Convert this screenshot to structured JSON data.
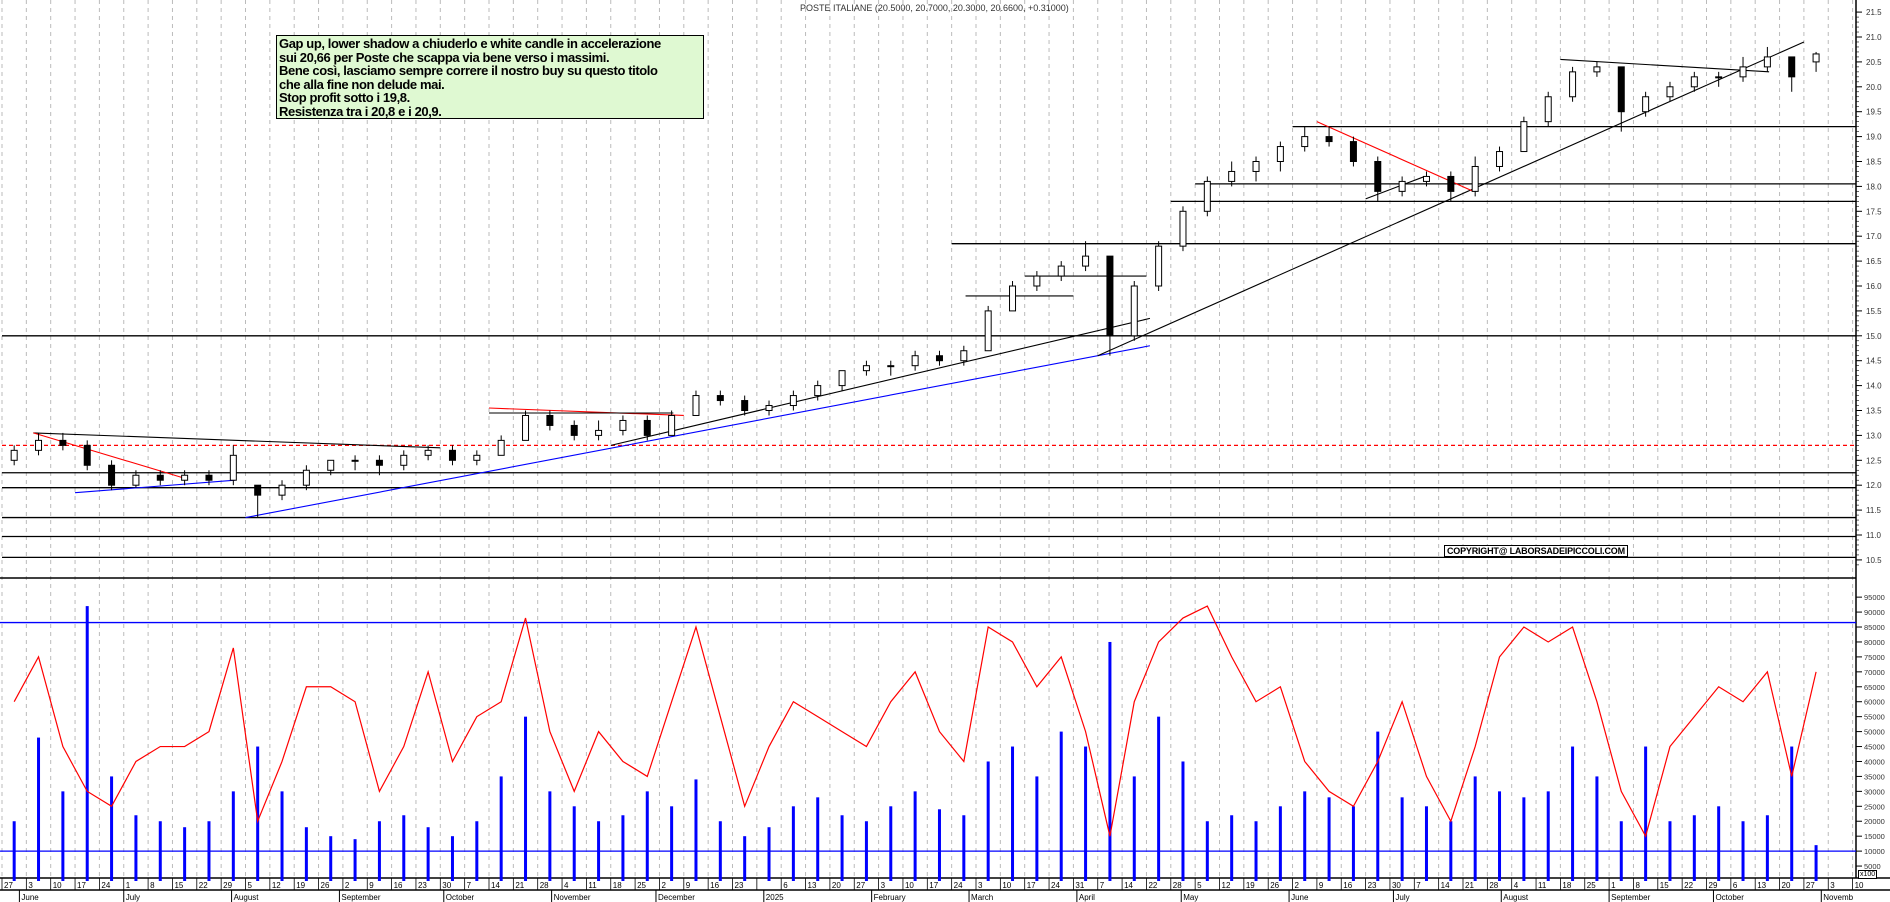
{
  "header": {
    "title": "POSTE ITALIANE (20.5000, 20.7000, 20.3000, 20.6600, +0.31000)"
  },
  "note": {
    "lines": [
      "Gap up, lower shadow a chiuderlo e white candle in accelerazione",
      "sui 20,66 per Poste che scappa via bene verso i massimi.",
      "Bene così, lasciamo sempre correre il nostro buy su questo titolo",
      "che alla fine non delude mai.",
      "Stop profit sotto i 19,8.",
      "Resistenza tra i 20,8 e i 20,9."
    ]
  },
  "copyright": "COPYRIGHT@ LABORSADEIPICCOLI.COM",
  "volume_unit": "x100",
  "colors": {
    "candle": "#000000",
    "support": "#000000",
    "trend_blue": "#0000ff",
    "trend_red": "#ff0000",
    "volume": "#0000ff",
    "oscillator": "#ff0000",
    "grid": "#bbbbbb",
    "note_bg": "#dff9d2"
  },
  "chart_data": [
    {
      "type": "candlestick",
      "title": "POSTE ITALIANE",
      "period": "weekly approximation of daily candles",
      "price_axis": {
        "ylim": [
          10.3,
          21.7
        ],
        "ticks": [
          "21.5",
          "21.0",
          "20.5",
          "20.0",
          "19.5",
          "19.0",
          "18.5",
          "18.0",
          "17.5",
          "17.0",
          "16.5",
          "16.0",
          "15.5",
          "15.0",
          "14.5",
          "14.0",
          "13.5",
          "13.0",
          "12.5",
          "12.0",
          "11.5",
          "11.0",
          "10.5"
        ]
      },
      "week_start": [
        "2024-05-27"
      ],
      "ohlc": [
        [
          12.5,
          12.8,
          12.4,
          12.7
        ],
        [
          12.7,
          13.05,
          12.6,
          12.9
        ],
        [
          12.9,
          13.05,
          12.7,
          12.8
        ],
        [
          12.8,
          12.9,
          12.3,
          12.4
        ],
        [
          12.4,
          12.5,
          11.9,
          12.0
        ],
        [
          12.0,
          12.3,
          11.95,
          12.2
        ],
        [
          12.2,
          12.3,
          12.0,
          12.1
        ],
        [
          12.1,
          12.3,
          12.0,
          12.2
        ],
        [
          12.2,
          12.3,
          12.0,
          12.1
        ],
        [
          12.1,
          12.8,
          12.0,
          12.6
        ],
        [
          12.0,
          12.0,
          11.35,
          11.8
        ],
        [
          11.8,
          12.1,
          11.7,
          12.0
        ],
        [
          12.0,
          12.4,
          11.9,
          12.3
        ],
        [
          12.3,
          12.5,
          12.2,
          12.5
        ],
        [
          12.5,
          12.6,
          12.3,
          12.5
        ],
        [
          12.5,
          12.6,
          12.2,
          12.4
        ],
        [
          12.4,
          12.7,
          12.3,
          12.6
        ],
        [
          12.6,
          12.8,
          12.5,
          12.7
        ],
        [
          12.7,
          12.8,
          12.4,
          12.5
        ],
        [
          12.5,
          12.7,
          12.4,
          12.6
        ],
        [
          12.6,
          13.0,
          12.6,
          12.9
        ],
        [
          12.9,
          13.5,
          12.9,
          13.4
        ],
        [
          13.4,
          13.5,
          13.1,
          13.2
        ],
        [
          13.2,
          13.3,
          12.9,
          13.0
        ],
        [
          13.0,
          13.3,
          12.9,
          13.1
        ],
        [
          13.1,
          13.4,
          13.0,
          13.3
        ],
        [
          13.3,
          13.4,
          12.9,
          13.0
        ],
        [
          13.0,
          13.5,
          13.0,
          13.4
        ],
        [
          13.4,
          13.9,
          13.4,
          13.8
        ],
        [
          13.8,
          13.9,
          13.6,
          13.7
        ],
        [
          13.7,
          13.8,
          13.4,
          13.5
        ],
        [
          13.5,
          13.7,
          13.4,
          13.6
        ],
        [
          13.6,
          13.9,
          13.5,
          13.8
        ],
        [
          13.8,
          14.1,
          13.7,
          14.0
        ],
        [
          14.0,
          14.3,
          13.9,
          14.3
        ],
        [
          14.3,
          14.5,
          14.2,
          14.4
        ],
        [
          14.4,
          14.5,
          14.2,
          14.4
        ],
        [
          14.4,
          14.7,
          14.3,
          14.6
        ],
        [
          14.6,
          14.7,
          14.4,
          14.5
        ],
        [
          14.5,
          14.8,
          14.4,
          14.7
        ],
        [
          14.7,
          15.6,
          14.7,
          15.5
        ],
        [
          15.5,
          16.1,
          15.5,
          16.0
        ],
        [
          16.0,
          16.3,
          15.9,
          16.2
        ],
        [
          16.2,
          16.5,
          16.1,
          16.4
        ],
        [
          16.4,
          16.9,
          16.3,
          16.6
        ],
        [
          16.6,
          16.6,
          14.6,
          15.0
        ],
        [
          15.0,
          16.1,
          14.9,
          16.0
        ],
        [
          16.0,
          16.9,
          15.9,
          16.8
        ],
        [
          16.8,
          17.6,
          16.7,
          17.5
        ],
        [
          17.5,
          18.2,
          17.4,
          18.1
        ],
        [
          18.1,
          18.5,
          18.0,
          18.3
        ],
        [
          18.3,
          18.6,
          18.1,
          18.5
        ],
        [
          18.5,
          18.9,
          18.3,
          18.8
        ],
        [
          18.8,
          19.2,
          18.7,
          19.0
        ],
        [
          19.0,
          19.2,
          18.8,
          18.9
        ],
        [
          18.9,
          19.0,
          18.4,
          18.5
        ],
        [
          18.5,
          18.6,
          17.7,
          17.9
        ],
        [
          17.9,
          18.2,
          17.8,
          18.1
        ],
        [
          18.1,
          18.3,
          18.0,
          18.2
        ],
        [
          18.2,
          18.3,
          17.7,
          17.9
        ],
        [
          17.9,
          18.6,
          17.8,
          18.4
        ],
        [
          18.4,
          18.8,
          18.3,
          18.7
        ],
        [
          18.7,
          19.4,
          18.7,
          19.3
        ],
        [
          19.3,
          19.9,
          19.2,
          19.8
        ],
        [
          19.8,
          20.4,
          19.7,
          20.3
        ],
        [
          20.3,
          20.5,
          20.2,
          20.4
        ],
        [
          20.4,
          20.4,
          19.1,
          19.5
        ],
        [
          19.5,
          19.9,
          19.4,
          19.8
        ],
        [
          19.8,
          20.1,
          19.7,
          20.0
        ],
        [
          20.0,
          20.3,
          19.9,
          20.2
        ],
        [
          20.2,
          20.3,
          20.0,
          20.2
        ],
        [
          20.2,
          20.6,
          20.1,
          20.4
        ],
        [
          20.4,
          20.8,
          20.3,
          20.6
        ],
        [
          20.6,
          20.6,
          19.9,
          20.2
        ],
        [
          20.5,
          20.7,
          20.3,
          20.66
        ]
      ],
      "horizontal_levels": [
        {
          "price": 19.2,
          "from": "2025-06-02",
          "style": "solid",
          "color": "#000000"
        },
        {
          "price": 18.05,
          "from": "2025-05-05",
          "style": "solid",
          "color": "#000000"
        },
        {
          "price": 17.7,
          "from": "2025-04-28",
          "style": "solid",
          "color": "#000000"
        },
        {
          "price": 16.85,
          "from": "2025-02-24",
          "style": "solid",
          "color": "#000000"
        },
        {
          "price": 15.0,
          "from": "2024-05-27",
          "style": "solid",
          "color": "#000000"
        },
        {
          "price": 12.8,
          "from": "2024-05-27",
          "style": "dashed",
          "color": "#ff0000"
        },
        {
          "price": 12.25,
          "from": "2024-05-27",
          "style": "solid",
          "color": "#000000"
        },
        {
          "price": 11.95,
          "from": "2024-05-27",
          "style": "solid",
          "color": "#000000"
        },
        {
          "price": 11.35,
          "from": "2024-05-27",
          "style": "solid",
          "color": "#000000"
        },
        {
          "price": 10.97,
          "from": "2024-05-27",
          "style": "solid",
          "color": "#000000"
        },
        {
          "price": 10.55,
          "from": "2024-05-27",
          "style": "solid",
          "color": "#000000"
        }
      ],
      "trendlines": [
        {
          "from": [
            "2024-06-05",
            13.05
          ],
          "to": [
            "2024-09-30",
            12.75
          ],
          "color": "#000000"
        },
        {
          "from": [
            "2024-06-05",
            13.05
          ],
          "to": [
            "2024-07-18",
            12.15
          ],
          "color": "#ff0000"
        },
        {
          "from": [
            "2024-06-17",
            11.85
          ],
          "to": [
            "2024-08-02",
            12.1
          ],
          "color": "#0000ff"
        },
        {
          "from": [
            "2024-08-05",
            11.35
          ],
          "to": [
            "2025-04-22",
            14.8
          ],
          "color": "#0000ff"
        },
        {
          "from": [
            "2024-11-18",
            12.8
          ],
          "to": [
            "2025-04-22",
            15.35
          ],
          "color": "#000000"
        },
        {
          "from": [
            "2024-10-14",
            13.55
          ],
          "to": [
            "2024-12-09",
            13.4
          ],
          "color": "#ff0000"
        },
        {
          "from": [
            "2024-10-14",
            13.45
          ],
          "to": [
            "2024-12-06",
            13.45
          ],
          "color": "#000000"
        },
        {
          "from": [
            "2025-02-28",
            15.8
          ],
          "to": [
            "2025-03-31",
            15.8
          ],
          "color": "#000000"
        },
        {
          "from": [
            "2025-03-17",
            16.2
          ],
          "to": [
            "2025-04-21",
            16.2
          ],
          "color": "#000000"
        },
        {
          "from": [
            "2025-04-07",
            14.6
          ],
          "to": [
            "2025-10-27",
            20.9
          ],
          "color": "#000000"
        },
        {
          "from": [
            "2025-06-09",
            19.3
          ],
          "to": [
            "2025-07-24",
            17.9
          ],
          "color": "#ff0000"
        },
        {
          "from": [
            "2025-08-18",
            20.55
          ],
          "to": [
            "2025-10-17",
            20.3
          ],
          "color": "#000000"
        },
        {
          "from": [
            "2025-06-23",
            17.75
          ],
          "to": [
            "2025-07-10",
            18.2
          ],
          "color": "#000000"
        }
      ]
    },
    {
      "type": "bar+line",
      "title": "",
      "y_axis": {
        "ylim": [
          0,
          100000
        ],
        "ticks": [
          "95000",
          "90000",
          "85000",
          "80000",
          "75000",
          "70000",
          "65000",
          "60000",
          "55000",
          "50000",
          "45000",
          "40000",
          "35000",
          "30000",
          "25000",
          "20000",
          "15000",
          "10000",
          "5000"
        ],
        "unit": "x100"
      },
      "reference_levels": [
        86500,
        10000
      ],
      "volume": [
        20000,
        48000,
        30000,
        92000,
        35000,
        22000,
        20000,
        18000,
        20000,
        30000,
        45000,
        30000,
        18000,
        15000,
        14000,
        20000,
        22000,
        18000,
        15000,
        20000,
        35000,
        55000,
        30000,
        25000,
        20000,
        22000,
        30000,
        25000,
        34000,
        20000,
        15000,
        18000,
        25000,
        28000,
        22000,
        20000,
        25000,
        30000,
        24000,
        22000,
        40000,
        45000,
        35000,
        50000,
        45000,
        80000,
        35000,
        55000,
        40000,
        20000,
        22000,
        20000,
        25000,
        30000,
        28000,
        25000,
        50000,
        28000,
        25000,
        20000,
        35000,
        30000,
        28000,
        30000,
        45000,
        35000,
        20000,
        45000,
        20000,
        22000,
        25000,
        20000,
        22000,
        45000,
        12000
      ],
      "oscillator": [
        60000,
        75000,
        45000,
        30000,
        25000,
        40000,
        45000,
        45000,
        50000,
        78000,
        20000,
        40000,
        65000,
        65000,
        60000,
        30000,
        45000,
        70000,
        40000,
        55000,
        60000,
        88000,
        50000,
        30000,
        50000,
        40000,
        35000,
        60000,
        85000,
        55000,
        25000,
        45000,
        60000,
        55000,
        50000,
        45000,
        60000,
        70000,
        50000,
        40000,
        85000,
        80000,
        65000,
        75000,
        50000,
        15000,
        60000,
        80000,
        88000,
        92000,
        75000,
        60000,
        65000,
        40000,
        30000,
        25000,
        40000,
        60000,
        35000,
        20000,
        45000,
        75000,
        85000,
        80000,
        85000,
        60000,
        30000,
        15000,
        45000,
        55000,
        65000,
        60000,
        70000,
        35000,
        70000
      ]
    }
  ],
  "x_axis": {
    "ticks": [
      "27",
      "3",
      "10",
      "17",
      "24",
      "1",
      "8",
      "15",
      "22",
      "29",
      "5",
      "12",
      "19",
      "26",
      "2",
      "9",
      "16",
      "23",
      "30",
      "7",
      "14",
      "21",
      "28",
      "4",
      "11",
      "18",
      "25",
      "2",
      "9",
      "16",
      "23",
      "",
      "6",
      "13",
      "20",
      "27",
      "3",
      "10",
      "17",
      "24",
      "3",
      "10",
      "17",
      "24",
      "31",
      "7",
      "14",
      "22",
      "28",
      "5",
      "12",
      "19",
      "26",
      "2",
      "9",
      "16",
      "23",
      "30",
      "7",
      "14",
      "21",
      "28",
      "4",
      "11",
      "18",
      "25",
      "1",
      "8",
      "15",
      "22",
      "29",
      "6",
      "13",
      "20",
      "27",
      "3",
      "10"
    ],
    "months": [
      {
        "label": "June",
        "start": "2024-06-01"
      },
      {
        "label": "July",
        "start": "2024-07-01"
      },
      {
        "label": "August",
        "start": "2024-08-01"
      },
      {
        "label": "September",
        "start": "2024-09-01"
      },
      {
        "label": "October",
        "start": "2024-10-01"
      },
      {
        "label": "November",
        "start": "2024-11-01"
      },
      {
        "label": "December",
        "start": "2024-12-01"
      },
      {
        "label": "2025",
        "start": "2025-01-01"
      },
      {
        "label": "February",
        "start": "2025-02-01"
      },
      {
        "label": "March",
        "start": "2025-03-01"
      },
      {
        "label": "April",
        "start": "2025-04-01"
      },
      {
        "label": "May",
        "start": "2025-05-01"
      },
      {
        "label": "June",
        "start": "2025-06-01"
      },
      {
        "label": "July",
        "start": "2025-07-01"
      },
      {
        "label": "August",
        "start": "2025-08-01"
      },
      {
        "label": "September",
        "start": "2025-09-01"
      },
      {
        "label": "October",
        "start": "2025-10-01"
      },
      {
        "label": "Novemb",
        "start": "2025-11-01"
      }
    ]
  }
}
